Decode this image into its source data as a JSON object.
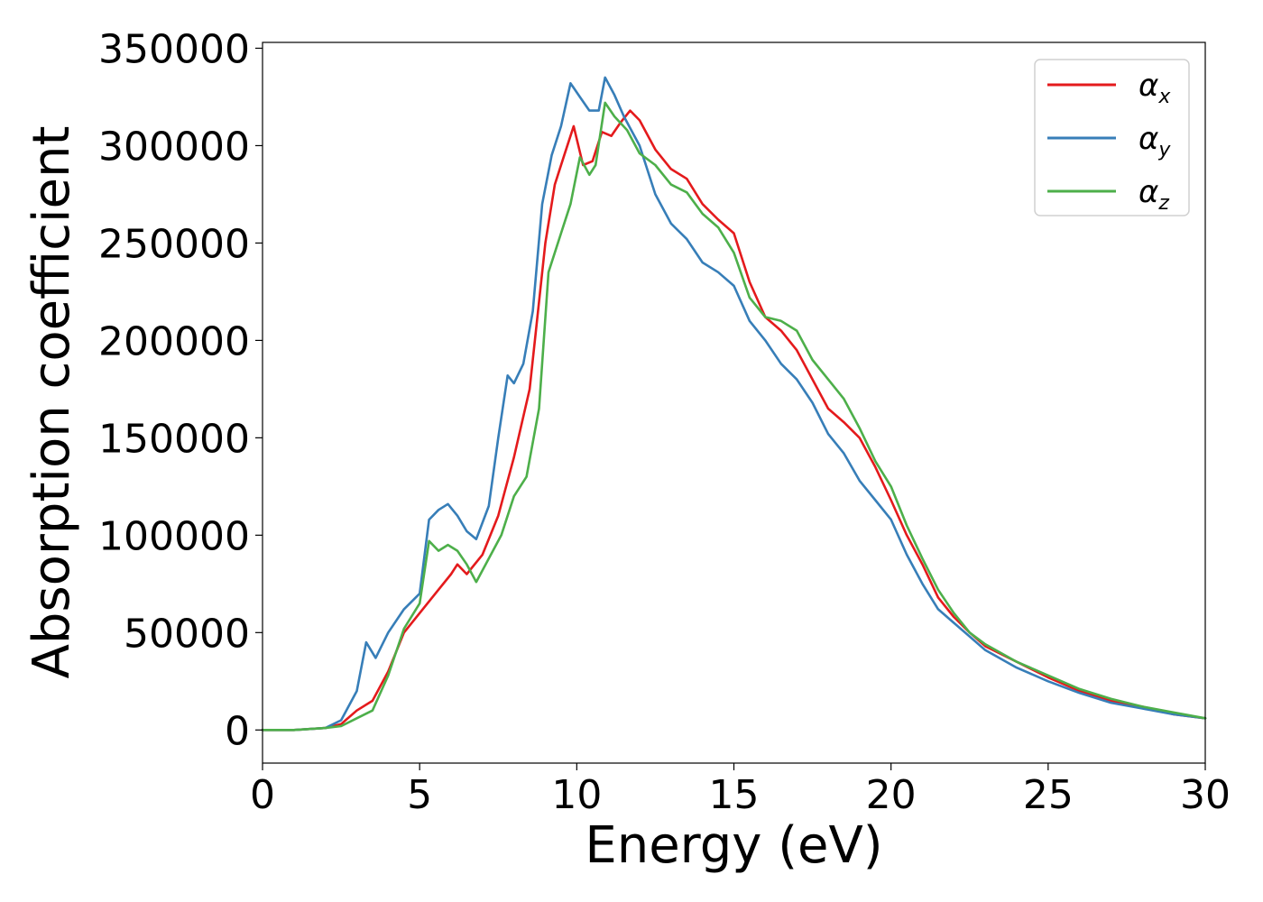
{
  "chart_data": {
    "type": "line",
    "title": "",
    "xlabel": "Energy (eV)",
    "ylabel": "Absorption coefficient",
    "xlim": [
      0,
      30
    ],
    "ylim": [
      -17000,
      353000
    ],
    "grid": false,
    "legend_position": "top-right",
    "xticks": [
      0,
      5,
      10,
      15,
      20,
      25,
      30
    ],
    "xtick_labels": [
      "0",
      "5",
      "10",
      "15",
      "20",
      "25",
      "30"
    ],
    "yticks": [
      0,
      50000,
      100000,
      150000,
      200000,
      250000,
      300000,
      350000
    ],
    "ytick_labels": [
      "0",
      "50000",
      "100000",
      "150000",
      "200000",
      "250000",
      "300000",
      "350000"
    ],
    "series": [
      {
        "name": "α_x",
        "symbol": "α",
        "subscript": "x",
        "color": "#e41a1c",
        "points": [
          [
            0,
            0
          ],
          [
            1,
            0
          ],
          [
            2,
            1000
          ],
          [
            2.5,
            3000
          ],
          [
            3,
            10000
          ],
          [
            3.5,
            15000
          ],
          [
            4,
            30000
          ],
          [
            4.5,
            50000
          ],
          [
            5,
            60000
          ],
          [
            5.5,
            70000
          ],
          [
            6,
            80000
          ],
          [
            6.2,
            85000
          ],
          [
            6.5,
            80000
          ],
          [
            7,
            90000
          ],
          [
            7.5,
            110000
          ],
          [
            8,
            140000
          ],
          [
            8.5,
            175000
          ],
          [
            9,
            250000
          ],
          [
            9.3,
            280000
          ],
          [
            9.6,
            295000
          ],
          [
            9.9,
            310000
          ],
          [
            10.2,
            290000
          ],
          [
            10.5,
            292000
          ],
          [
            10.8,
            307000
          ],
          [
            11.1,
            305000
          ],
          [
            11.4,
            312000
          ],
          [
            11.7,
            318000
          ],
          [
            12,
            313000
          ],
          [
            12.5,
            298000
          ],
          [
            13,
            288000
          ],
          [
            13.5,
            283000
          ],
          [
            14,
            270000
          ],
          [
            14.5,
            262000
          ],
          [
            15,
            255000
          ],
          [
            15.5,
            230000
          ],
          [
            16,
            212000
          ],
          [
            16.5,
            205000
          ],
          [
            17,
            195000
          ],
          [
            17.5,
            180000
          ],
          [
            18,
            165000
          ],
          [
            18.5,
            158000
          ],
          [
            19,
            150000
          ],
          [
            19.5,
            135000
          ],
          [
            20,
            118000
          ],
          [
            20.5,
            100000
          ],
          [
            21,
            85000
          ],
          [
            21.5,
            68000
          ],
          [
            22,
            58000
          ],
          [
            22.5,
            50000
          ],
          [
            23,
            43000
          ],
          [
            24,
            35000
          ],
          [
            25,
            27000
          ],
          [
            26,
            20000
          ],
          [
            27,
            15000
          ],
          [
            28,
            12000
          ],
          [
            29,
            8000
          ],
          [
            30,
            6000
          ]
        ]
      },
      {
        "name": "α_y",
        "symbol": "α",
        "subscript": "y",
        "color": "#377eb8",
        "points": [
          [
            0,
            0
          ],
          [
            1,
            0
          ],
          [
            2,
            1000
          ],
          [
            2.5,
            5000
          ],
          [
            3,
            20000
          ],
          [
            3.3,
            45000
          ],
          [
            3.6,
            37000
          ],
          [
            4,
            50000
          ],
          [
            4.5,
            62000
          ],
          [
            5,
            70000
          ],
          [
            5.3,
            108000
          ],
          [
            5.6,
            113000
          ],
          [
            5.9,
            116000
          ],
          [
            6.2,
            110000
          ],
          [
            6.5,
            102000
          ],
          [
            6.8,
            98000
          ],
          [
            7.2,
            115000
          ],
          [
            7.5,
            150000
          ],
          [
            7.8,
            182000
          ],
          [
            8,
            178000
          ],
          [
            8.3,
            188000
          ],
          [
            8.6,
            215000
          ],
          [
            8.9,
            270000
          ],
          [
            9.2,
            295000
          ],
          [
            9.5,
            310000
          ],
          [
            9.8,
            332000
          ],
          [
            10.1,
            325000
          ],
          [
            10.4,
            318000
          ],
          [
            10.7,
            318000
          ],
          [
            10.9,
            335000
          ],
          [
            11.2,
            326000
          ],
          [
            11.5,
            315000
          ],
          [
            12,
            300000
          ],
          [
            12.5,
            275000
          ],
          [
            13,
            260000
          ],
          [
            13.5,
            252000
          ],
          [
            14,
            240000
          ],
          [
            14.5,
            235000
          ],
          [
            15,
            228000
          ],
          [
            15.5,
            210000
          ],
          [
            16,
            200000
          ],
          [
            16.5,
            188000
          ],
          [
            17,
            180000
          ],
          [
            17.5,
            168000
          ],
          [
            18,
            152000
          ],
          [
            18.5,
            142000
          ],
          [
            19,
            128000
          ],
          [
            19.5,
            118000
          ],
          [
            20,
            108000
          ],
          [
            20.5,
            90000
          ],
          [
            21,
            75000
          ],
          [
            21.5,
            62000
          ],
          [
            22,
            55000
          ],
          [
            22.5,
            48000
          ],
          [
            23,
            41000
          ],
          [
            24,
            32000
          ],
          [
            25,
            25000
          ],
          [
            26,
            19000
          ],
          [
            27,
            14000
          ],
          [
            28,
            11000
          ],
          [
            29,
            8000
          ],
          [
            30,
            6000
          ]
        ]
      },
      {
        "name": "α_z",
        "symbol": "α",
        "subscript": "z",
        "color": "#4daf4a",
        "points": [
          [
            0,
            0
          ],
          [
            1,
            0
          ],
          [
            2,
            1000
          ],
          [
            2.5,
            2000
          ],
          [
            3,
            6000
          ],
          [
            3.5,
            10000
          ],
          [
            4,
            28000
          ],
          [
            4.5,
            52000
          ],
          [
            5,
            65000
          ],
          [
            5.3,
            97000
          ],
          [
            5.6,
            92000
          ],
          [
            5.9,
            95000
          ],
          [
            6.2,
            92000
          ],
          [
            6.5,
            85000
          ],
          [
            6.8,
            76000
          ],
          [
            7.2,
            88000
          ],
          [
            7.6,
            100000
          ],
          [
            8,
            120000
          ],
          [
            8.4,
            130000
          ],
          [
            8.8,
            165000
          ],
          [
            9.1,
            235000
          ],
          [
            9.5,
            255000
          ],
          [
            9.8,
            270000
          ],
          [
            10.1,
            294000
          ],
          [
            10.4,
            285000
          ],
          [
            10.6,
            290000
          ],
          [
            10.9,
            322000
          ],
          [
            11.2,
            315000
          ],
          [
            11.6,
            308000
          ],
          [
            12,
            296000
          ],
          [
            12.5,
            290000
          ],
          [
            13,
            280000
          ],
          [
            13.5,
            276000
          ],
          [
            14,
            265000
          ],
          [
            14.5,
            258000
          ],
          [
            15,
            245000
          ],
          [
            15.5,
            222000
          ],
          [
            16,
            212000
          ],
          [
            16.5,
            210000
          ],
          [
            17,
            205000
          ],
          [
            17.5,
            190000
          ],
          [
            18,
            180000
          ],
          [
            18.5,
            170000
          ],
          [
            19,
            155000
          ],
          [
            19.5,
            138000
          ],
          [
            20,
            125000
          ],
          [
            20.5,
            105000
          ],
          [
            21,
            88000
          ],
          [
            21.5,
            72000
          ],
          [
            22,
            60000
          ],
          [
            22.5,
            50000
          ],
          [
            23,
            44000
          ],
          [
            24,
            35000
          ],
          [
            25,
            28000
          ],
          [
            26,
            21000
          ],
          [
            27,
            16000
          ],
          [
            28,
            12000
          ],
          [
            29,
            9000
          ],
          [
            30,
            6000
          ]
        ]
      }
    ]
  }
}
